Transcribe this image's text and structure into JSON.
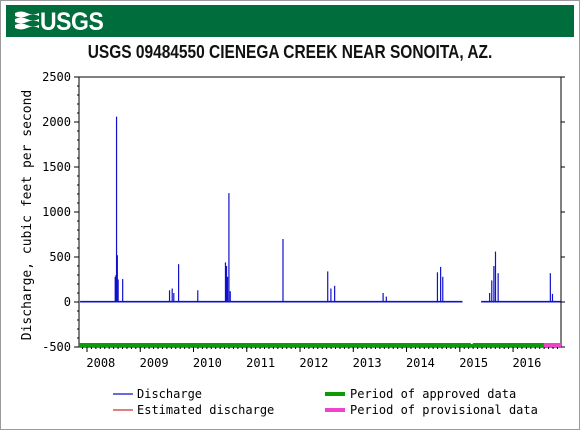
{
  "header": {
    "logo_text": "USGS",
    "banner_color": "#006e3c"
  },
  "chart_data": {
    "type": "line",
    "title": "USGS 09484550 CIENEGA CREEK NEAR SONOITA, AZ.",
    "xlabel": "",
    "ylabel": "Discharge, cubic feet per second",
    "xlim": [
      2007.85,
      2016.9
    ],
    "ylim": [
      -500,
      2500
    ],
    "yticks": [
      -500,
      0,
      500,
      1000,
      1500,
      2000,
      2500
    ],
    "xticks": [
      {
        "value": 2008,
        "label": "2008"
      },
      {
        "value": 2009,
        "label": "2009"
      },
      {
        "value": 2010,
        "label": "2010"
      },
      {
        "value": 2011,
        "label": "2011"
      },
      {
        "value": 2012,
        "label": "2012"
      },
      {
        "value": 2013,
        "label": "2013"
      },
      {
        "value": 2014,
        "label": "2014"
      },
      {
        "value": 2015,
        "label": "2015"
      },
      {
        "value": 2016,
        "label": "2016"
      }
    ],
    "grid": false,
    "baseflow": 3,
    "gaps": [
      [
        2015.05,
        2015.4
      ]
    ],
    "series": [
      {
        "name": "Discharge",
        "color": "#1111cc",
        "peaks": [
          [
            2008.53,
            280
          ],
          [
            2008.545,
            300
          ],
          [
            2008.555,
            2060
          ],
          [
            2008.57,
            520
          ],
          [
            2008.585,
            250
          ],
          [
            2008.67,
            255
          ],
          [
            2009.55,
            130
          ],
          [
            2009.6,
            150
          ],
          [
            2009.63,
            100
          ],
          [
            2009.72,
            420
          ],
          [
            2010.08,
            130
          ],
          [
            2010.6,
            440
          ],
          [
            2010.62,
            400
          ],
          [
            2010.64,
            280
          ],
          [
            2010.665,
            1210
          ],
          [
            2010.69,
            120
          ],
          [
            2011.68,
            700
          ],
          [
            2012.52,
            340
          ],
          [
            2012.58,
            150
          ],
          [
            2012.65,
            180
          ],
          [
            2013.56,
            100
          ],
          [
            2013.62,
            60
          ],
          [
            2014.58,
            330
          ],
          [
            2014.64,
            390
          ],
          [
            2014.68,
            280
          ],
          [
            2015.56,
            100
          ],
          [
            2015.6,
            240
          ],
          [
            2015.64,
            400
          ],
          [
            2015.67,
            560
          ],
          [
            2015.72,
            320
          ],
          [
            2016.7,
            320
          ],
          [
            2016.74,
            90
          ]
        ]
      },
      {
        "name": "Estimated discharge",
        "color": "#cc3333",
        "peaks": []
      }
    ],
    "periods": [
      {
        "name": "Period of approved data",
        "color": "#0a9a0a",
        "start": 2007.85,
        "end": 2016.58
      },
      {
        "name": "Period of provisional data",
        "color": "#ee44cc",
        "start": 2016.58,
        "end": 2016.9
      }
    ]
  },
  "legend": [
    {
      "label": "Discharge",
      "color": "#1111cc",
      "style": "thin"
    },
    {
      "label": "Estimated discharge",
      "color": "#cc3333",
      "style": "thin"
    },
    {
      "label": "Period of approved data",
      "color": "#0a9a0a",
      "style": "thick"
    },
    {
      "label": "Period of provisional data",
      "color": "#ee44cc",
      "style": "thick"
    }
  ]
}
